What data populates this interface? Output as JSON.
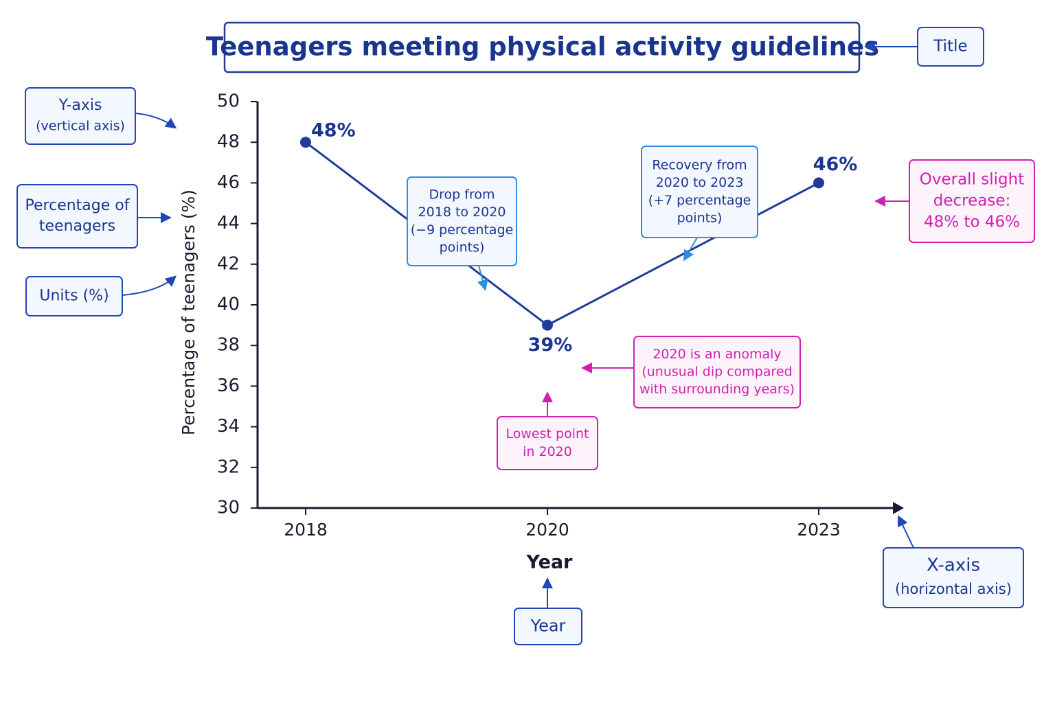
{
  "chart_data": {
    "type": "line",
    "title": "Teenagers meeting physical activity guidelines",
    "xlabel": "Year",
    "ylabel": "Percentage of teenagers (%)",
    "categories": [
      "2018",
      "2020",
      "2023"
    ],
    "values": [
      48,
      39,
      46
    ],
    "value_labels": [
      "48%",
      "39%",
      "46%"
    ],
    "color": "#1f3c99",
    "ylim": [
      30,
      50
    ],
    "yticks": [
      30,
      32,
      34,
      36,
      38,
      40,
      42,
      44,
      46,
      48,
      50
    ],
    "annotations": [
      {
        "lines": [
          "Title"
        ]
      },
      {
        "lines": [
          "Y-axis",
          "(vertical axis)"
        ]
      },
      {
        "lines": [
          "Percentage of",
          "teenagers"
        ]
      },
      {
        "lines": [
          "Units (%)"
        ]
      },
      {
        "lines": [
          "Drop from",
          "2018 to 2020",
          "(−9 percentage",
          "points)"
        ]
      },
      {
        "lines": [
          "Recovery from",
          "2020 to 2023",
          "(+7 percentage",
          "points)"
        ]
      },
      {
        "lines": [
          "Overall slight",
          "decrease:",
          "48% to 46%"
        ]
      },
      {
        "lines": [
          "2020 is an anomaly",
          "(unusual dip compared",
          "with surrounding years)"
        ]
      },
      {
        "lines": [
          "Lowest point",
          "in 2020"
        ]
      },
      {
        "lines": [
          "X-axis",
          "(horizontal axis)"
        ]
      },
      {
        "lines": [
          "Year"
        ]
      }
    ]
  }
}
